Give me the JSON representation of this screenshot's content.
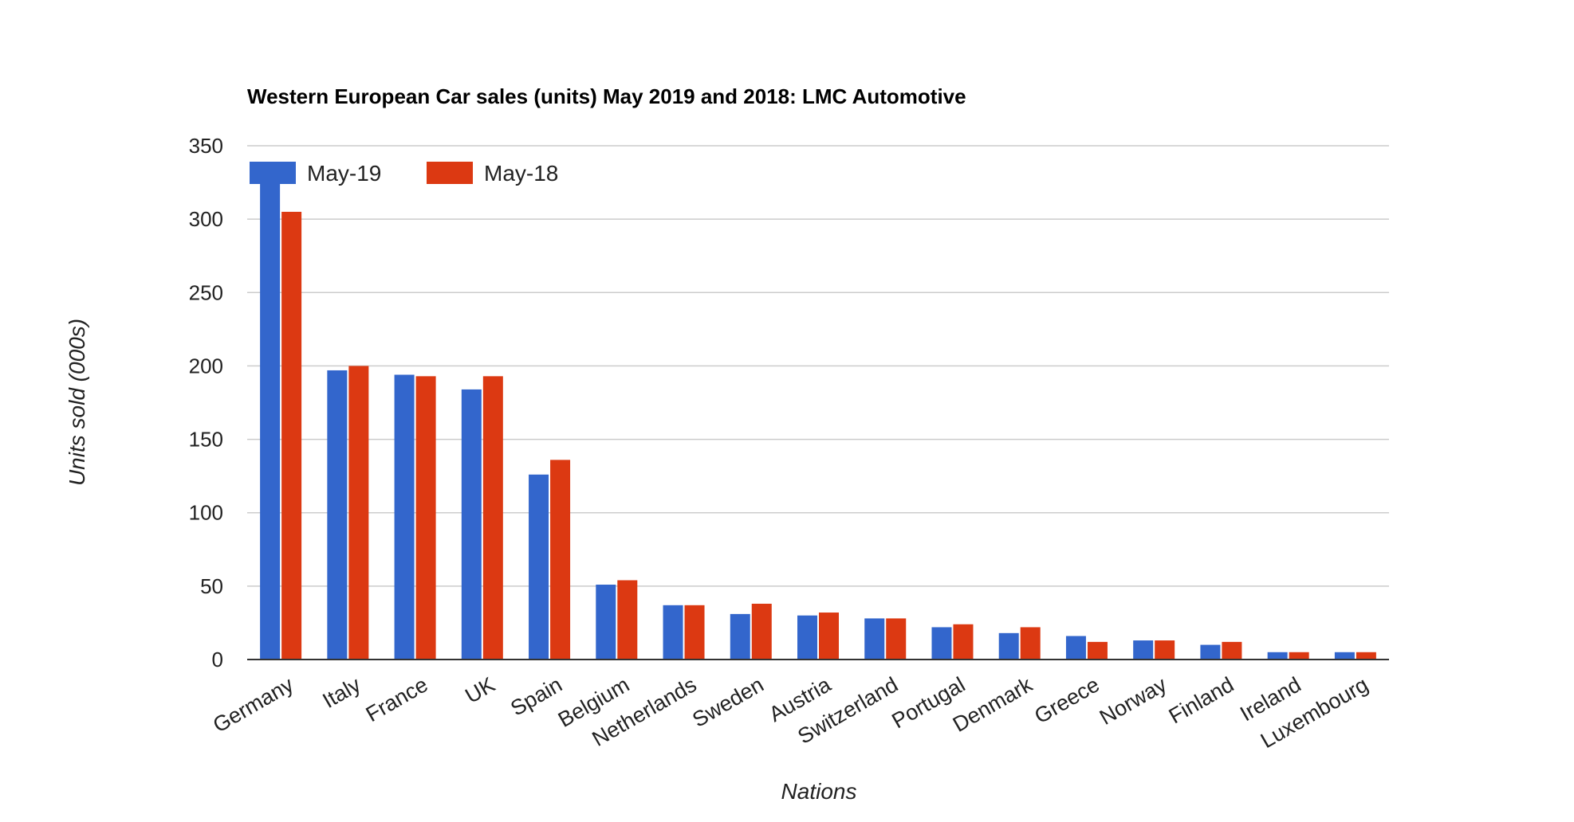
{
  "chart_data": {
    "type": "bar",
    "title": "Western European Car sales (units) May 2019 and 2018: LMC Automotive",
    "xlabel": "Nations",
    "ylabel": "Units sold (000s)",
    "ylim": [
      0,
      350
    ],
    "yticks": [
      "0",
      "50",
      "100",
      "150",
      "200",
      "250",
      "300",
      "350"
    ],
    "grid": true,
    "legend_position": "top-left",
    "categories": [
      "Germany",
      "Italy",
      "France",
      "UK",
      "Spain",
      "Belgium",
      "Netherlands",
      "Sweden",
      "Austria",
      "Switzerland",
      "Portugal",
      "Denmark",
      "Greece",
      "Norway",
      "Finland",
      "Ireland",
      "Luxembourg"
    ],
    "series": [
      {
        "name": "May-19",
        "color": "#3366cc",
        "values": [
          325,
          197,
          194,
          184,
          126,
          51,
          37,
          31,
          30,
          28,
          22,
          18,
          16,
          13,
          10,
          5,
          5
        ]
      },
      {
        "name": "May-18",
        "color": "#dc3912",
        "values": [
          305,
          200,
          193,
          193,
          136,
          54,
          37,
          38,
          32,
          28,
          24,
          22,
          12,
          13,
          12,
          5,
          5
        ]
      }
    ]
  }
}
